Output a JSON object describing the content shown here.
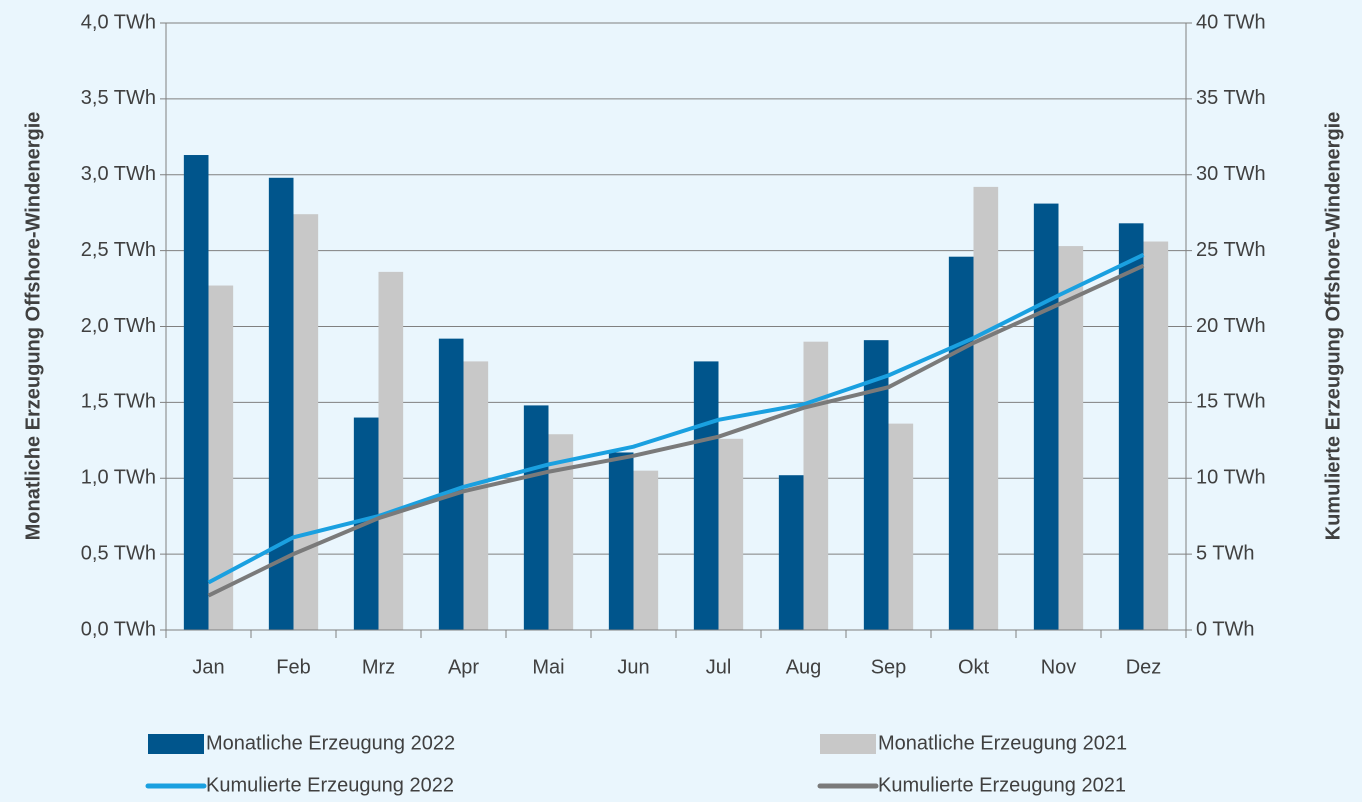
{
  "chart_data": {
    "type": "bar_line",
    "y_label": "Monatliche Erzeugung Offshore-Windenergie",
    "y2_label": "Kumulierte Erzeugung Offshore-Windenergie",
    "categories": [
      "Jan",
      "Feb",
      "Mrz",
      "Apr",
      "Mai",
      "Jun",
      "Jul",
      "Aug",
      "Sep",
      "Okt",
      "Nov",
      "Dez"
    ],
    "series": [
      {
        "name": "Monatliche Erzeugung 2022",
        "kind": "bar",
        "color": "#00558c",
        "values": [
          3.13,
          2.98,
          1.4,
          1.92,
          1.48,
          1.17,
          1.77,
          1.02,
          1.91,
          2.46,
          2.81,
          2.68
        ]
      },
      {
        "name": "Monatliche Erzeugung 2021",
        "kind": "bar",
        "color": "#c8c8c8",
        "values": [
          2.27,
          2.74,
          2.36,
          1.77,
          1.29,
          1.05,
          1.26,
          1.9,
          1.36,
          2.92,
          2.53,
          2.56
        ]
      },
      {
        "name": "Kumulierte Erzeugung 2022",
        "kind": "line",
        "axis": "y2",
        "color": "#1aa0e0",
        "values": [
          3.13,
          6.11,
          7.51,
          9.43,
          10.91,
          12.08,
          13.85,
          14.87,
          16.78,
          19.24,
          22.05,
          24.73
        ]
      },
      {
        "name": "Kumulierte Erzeugung 2021",
        "kind": "line",
        "axis": "y2",
        "color": "#7a7a7a",
        "values": [
          2.27,
          5.01,
          7.37,
          9.14,
          10.43,
          11.48,
          12.74,
          14.64,
          16.0,
          18.92,
          21.45,
          24.01
        ]
      }
    ],
    "ylim": [
      0,
      4
    ],
    "yticks": [
      {
        "value": 0,
        "label": "0,0 TWh"
      },
      {
        "value": 0.5,
        "label": "0,5 TWh"
      },
      {
        "value": 1,
        "label": "1,0 TWh"
      },
      {
        "value": 1.5,
        "label": "1,5 TWh"
      },
      {
        "value": 2,
        "label": "2,0 TWh"
      },
      {
        "value": 2.5,
        "label": "2,5 TWh"
      },
      {
        "value": 3,
        "label": "3,0 TWh"
      },
      {
        "value": 3.5,
        "label": "3,5 TWh"
      },
      {
        "value": 4,
        "label": "4,0 TWh"
      }
    ],
    "y2lim": [
      0,
      40
    ],
    "y2ticks": [
      {
        "value": 0,
        "label": "0 TWh"
      },
      {
        "value": 5,
        "label": "5 TWh"
      },
      {
        "value": 10,
        "label": "10 TWh"
      },
      {
        "value": 15,
        "label": "15 TWh"
      },
      {
        "value": 20,
        "label": "20 TWh"
      },
      {
        "value": 25,
        "label": "25 TWh"
      },
      {
        "value": 30,
        "label": "30 TWh"
      },
      {
        "value": 35,
        "label": "35 TWh"
      },
      {
        "value": 40,
        "label": "40 TWh"
      }
    ],
    "grid": true
  }
}
